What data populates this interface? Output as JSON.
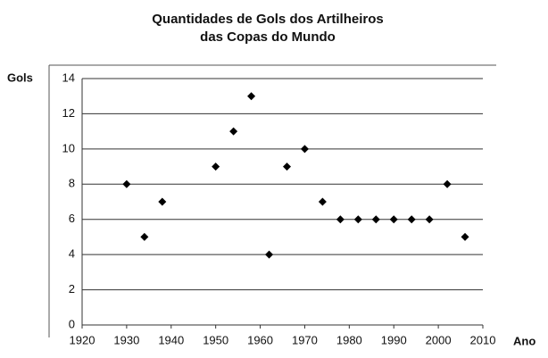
{
  "chart_data": {
    "type": "scatter",
    "title_lines": [
      "Quantidades de Gols dos Artilheiros",
      "das Copas do Mundo"
    ],
    "y_label": "Gols",
    "x_label": "Ano",
    "x": [
      1930,
      1934,
      1938,
      1950,
      1954,
      1958,
      1962,
      1966,
      1970,
      1974,
      1978,
      1982,
      1986,
      1990,
      1994,
      1998,
      2002,
      2006
    ],
    "values": [
      8,
      5,
      7,
      9,
      11,
      13,
      4,
      9,
      10,
      7,
      6,
      6,
      6,
      6,
      6,
      6,
      8,
      5
    ],
    "color": "#000000",
    "xlim": [
      1920,
      2010
    ],
    "xticks": [
      1920,
      1930,
      1940,
      1950,
      1960,
      1970,
      1980,
      1990,
      2000,
      2010
    ],
    "ylim": [
      0,
      14
    ],
    "yticks": [
      0,
      2,
      4,
      6,
      8,
      10,
      12,
      14
    ],
    "grid": true
  }
}
